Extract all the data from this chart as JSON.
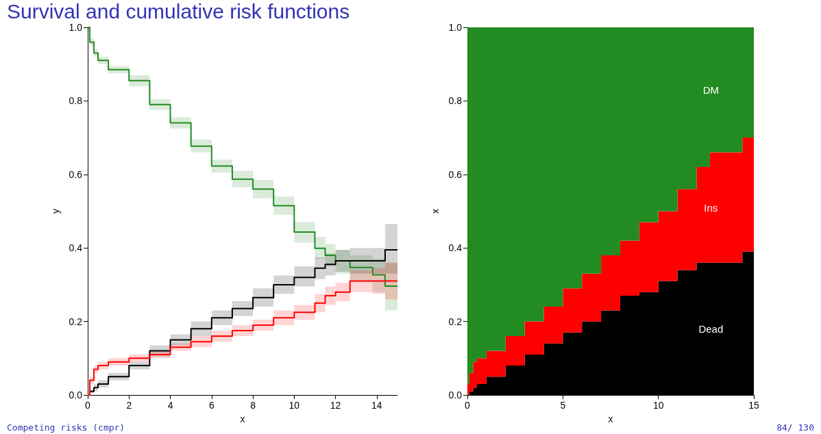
{
  "chart_data": [
    {
      "type": "step",
      "title": "Survival and cumulative risk functions",
      "xlabel": "x",
      "ylabel": "y",
      "annotations": [
        "Competing risks (cmpr)"
      ],
      "x": [
        0,
        0.1,
        0.3,
        0.5,
        1,
        2,
        3,
        4,
        5,
        6,
        7,
        8,
        9,
        10,
        11,
        11.5,
        12,
        12.7,
        13.8,
        14.4,
        15
      ],
      "series": [
        {
          "color": "#228b22",
          "values": [
            1.0,
            0.96,
            0.93,
            0.91,
            0.885,
            0.855,
            0.79,
            0.74,
            0.677,
            0.623,
            0.587,
            0.56,
            0.515,
            0.443,
            0.399,
            0.38,
            0.365,
            0.347,
            0.327,
            0.296,
            0.296
          ],
          "lower": [
            0.99,
            0.95,
            0.92,
            0.9,
            0.875,
            0.84,
            0.775,
            0.725,
            0.66,
            0.605,
            0.565,
            0.535,
            0.49,
            0.415,
            0.37,
            0.35,
            0.33,
            0.31,
            0.28,
            0.23,
            0.23
          ],
          "upper": [
            1.0,
            0.97,
            0.94,
            0.92,
            0.895,
            0.87,
            0.805,
            0.755,
            0.695,
            0.64,
            0.61,
            0.585,
            0.54,
            0.47,
            0.43,
            0.41,
            0.395,
            0.38,
            0.37,
            0.36,
            0.36
          ]
        },
        {
          "color": "#000000",
          "values": [
            0,
            0.01,
            0.02,
            0.03,
            0.05,
            0.08,
            0.12,
            0.15,
            0.18,
            0.21,
            0.235,
            0.265,
            0.3,
            0.32,
            0.345,
            0.355,
            0.365,
            0.365,
            0.365,
            0.395,
            0.395
          ],
          "lower": [
            0,
            0.005,
            0.01,
            0.02,
            0.04,
            0.07,
            0.105,
            0.135,
            0.16,
            0.19,
            0.215,
            0.24,
            0.275,
            0.295,
            0.315,
            0.325,
            0.335,
            0.33,
            0.33,
            0.33,
            0.33
          ],
          "upper": [
            0,
            0.015,
            0.03,
            0.04,
            0.06,
            0.09,
            0.135,
            0.165,
            0.2,
            0.23,
            0.255,
            0.29,
            0.325,
            0.35,
            0.375,
            0.385,
            0.395,
            0.4,
            0.4,
            0.465,
            0.465
          ]
        },
        {
          "color": "#ff0000",
          "values": [
            0,
            0.04,
            0.07,
            0.08,
            0.09,
            0.1,
            0.11,
            0.13,
            0.145,
            0.16,
            0.175,
            0.19,
            0.21,
            0.225,
            0.25,
            0.27,
            0.28,
            0.31,
            0.31,
            0.31,
            0.31
          ],
          "lower": [
            0,
            0.03,
            0.06,
            0.07,
            0.08,
            0.09,
            0.1,
            0.12,
            0.13,
            0.145,
            0.16,
            0.175,
            0.19,
            0.205,
            0.225,
            0.245,
            0.255,
            0.28,
            0.275,
            0.26,
            0.26
          ],
          "upper": [
            0,
            0.05,
            0.08,
            0.09,
            0.1,
            0.11,
            0.12,
            0.14,
            0.16,
            0.175,
            0.19,
            0.205,
            0.23,
            0.245,
            0.275,
            0.295,
            0.305,
            0.34,
            0.345,
            0.36,
            0.36
          ]
        }
      ],
      "xlim": [
        0,
        15
      ],
      "xticks": [
        0,
        2,
        4,
        6,
        8,
        10,
        12,
        14
      ],
      "ylim": [
        0,
        1
      ],
      "yticks": [
        {
          "value": 0,
          "label": "0.0"
        },
        {
          "value": 0.2,
          "label": "0.2"
        },
        {
          "value": 0.4,
          "label": "0.4"
        },
        {
          "value": 0.6,
          "label": "0.6"
        },
        {
          "value": 0.8,
          "label": "0.8"
        },
        {
          "value": 1,
          "label": "1.0"
        }
      ]
    },
    {
      "type": "area",
      "stacked": true,
      "xlabel": "x",
      "ylabel": "x",
      "annotations": [
        "84/ 130"
      ],
      "x": [
        0,
        0.1,
        0.3,
        0.5,
        1,
        2,
        3,
        4,
        5,
        6,
        7,
        8,
        9,
        10,
        11,
        12,
        12.7,
        13.8,
        14.4,
        15
      ],
      "series": [
        {
          "name": "Dead",
          "color": "#000000",
          "values": [
            0,
            0.01,
            0.02,
            0.03,
            0.05,
            0.08,
            0.11,
            0.14,
            0.17,
            0.2,
            0.23,
            0.27,
            0.28,
            0.31,
            0.34,
            0.36,
            0.36,
            0.36,
            0.39,
            0.39
          ]
        },
        {
          "name": "Ins",
          "color": "#ff0000",
          "values": [
            0.03,
            0.05,
            0.07,
            0.07,
            0.07,
            0.08,
            0.09,
            0.1,
            0.12,
            0.13,
            0.15,
            0.15,
            0.19,
            0.19,
            0.22,
            0.26,
            0.3,
            0.3,
            0.31,
            0.31
          ]
        },
        {
          "name": "DM",
          "color": "#228b22",
          "values": [
            0.97,
            0.94,
            0.91,
            0.9,
            0.88,
            0.84,
            0.8,
            0.76,
            0.71,
            0.67,
            0.62,
            0.58,
            0.53,
            0.5,
            0.44,
            0.38,
            0.34,
            0.34,
            0.3,
            0.3
          ]
        }
      ],
      "xlim": [
        0,
        15
      ],
      "xticks": [
        0,
        5,
        10,
        15
      ],
      "ylim": [
        0,
        1
      ],
      "yticks": [
        {
          "value": 0,
          "label": "0.0"
        },
        {
          "value": 0.2,
          "label": "0.2"
        },
        {
          "value": 0.4,
          "label": "0.4"
        },
        {
          "value": 0.6,
          "label": "0.6"
        },
        {
          "value": 0.8,
          "label": "0.8"
        },
        {
          "value": 1,
          "label": "1.0"
        }
      ]
    }
  ]
}
